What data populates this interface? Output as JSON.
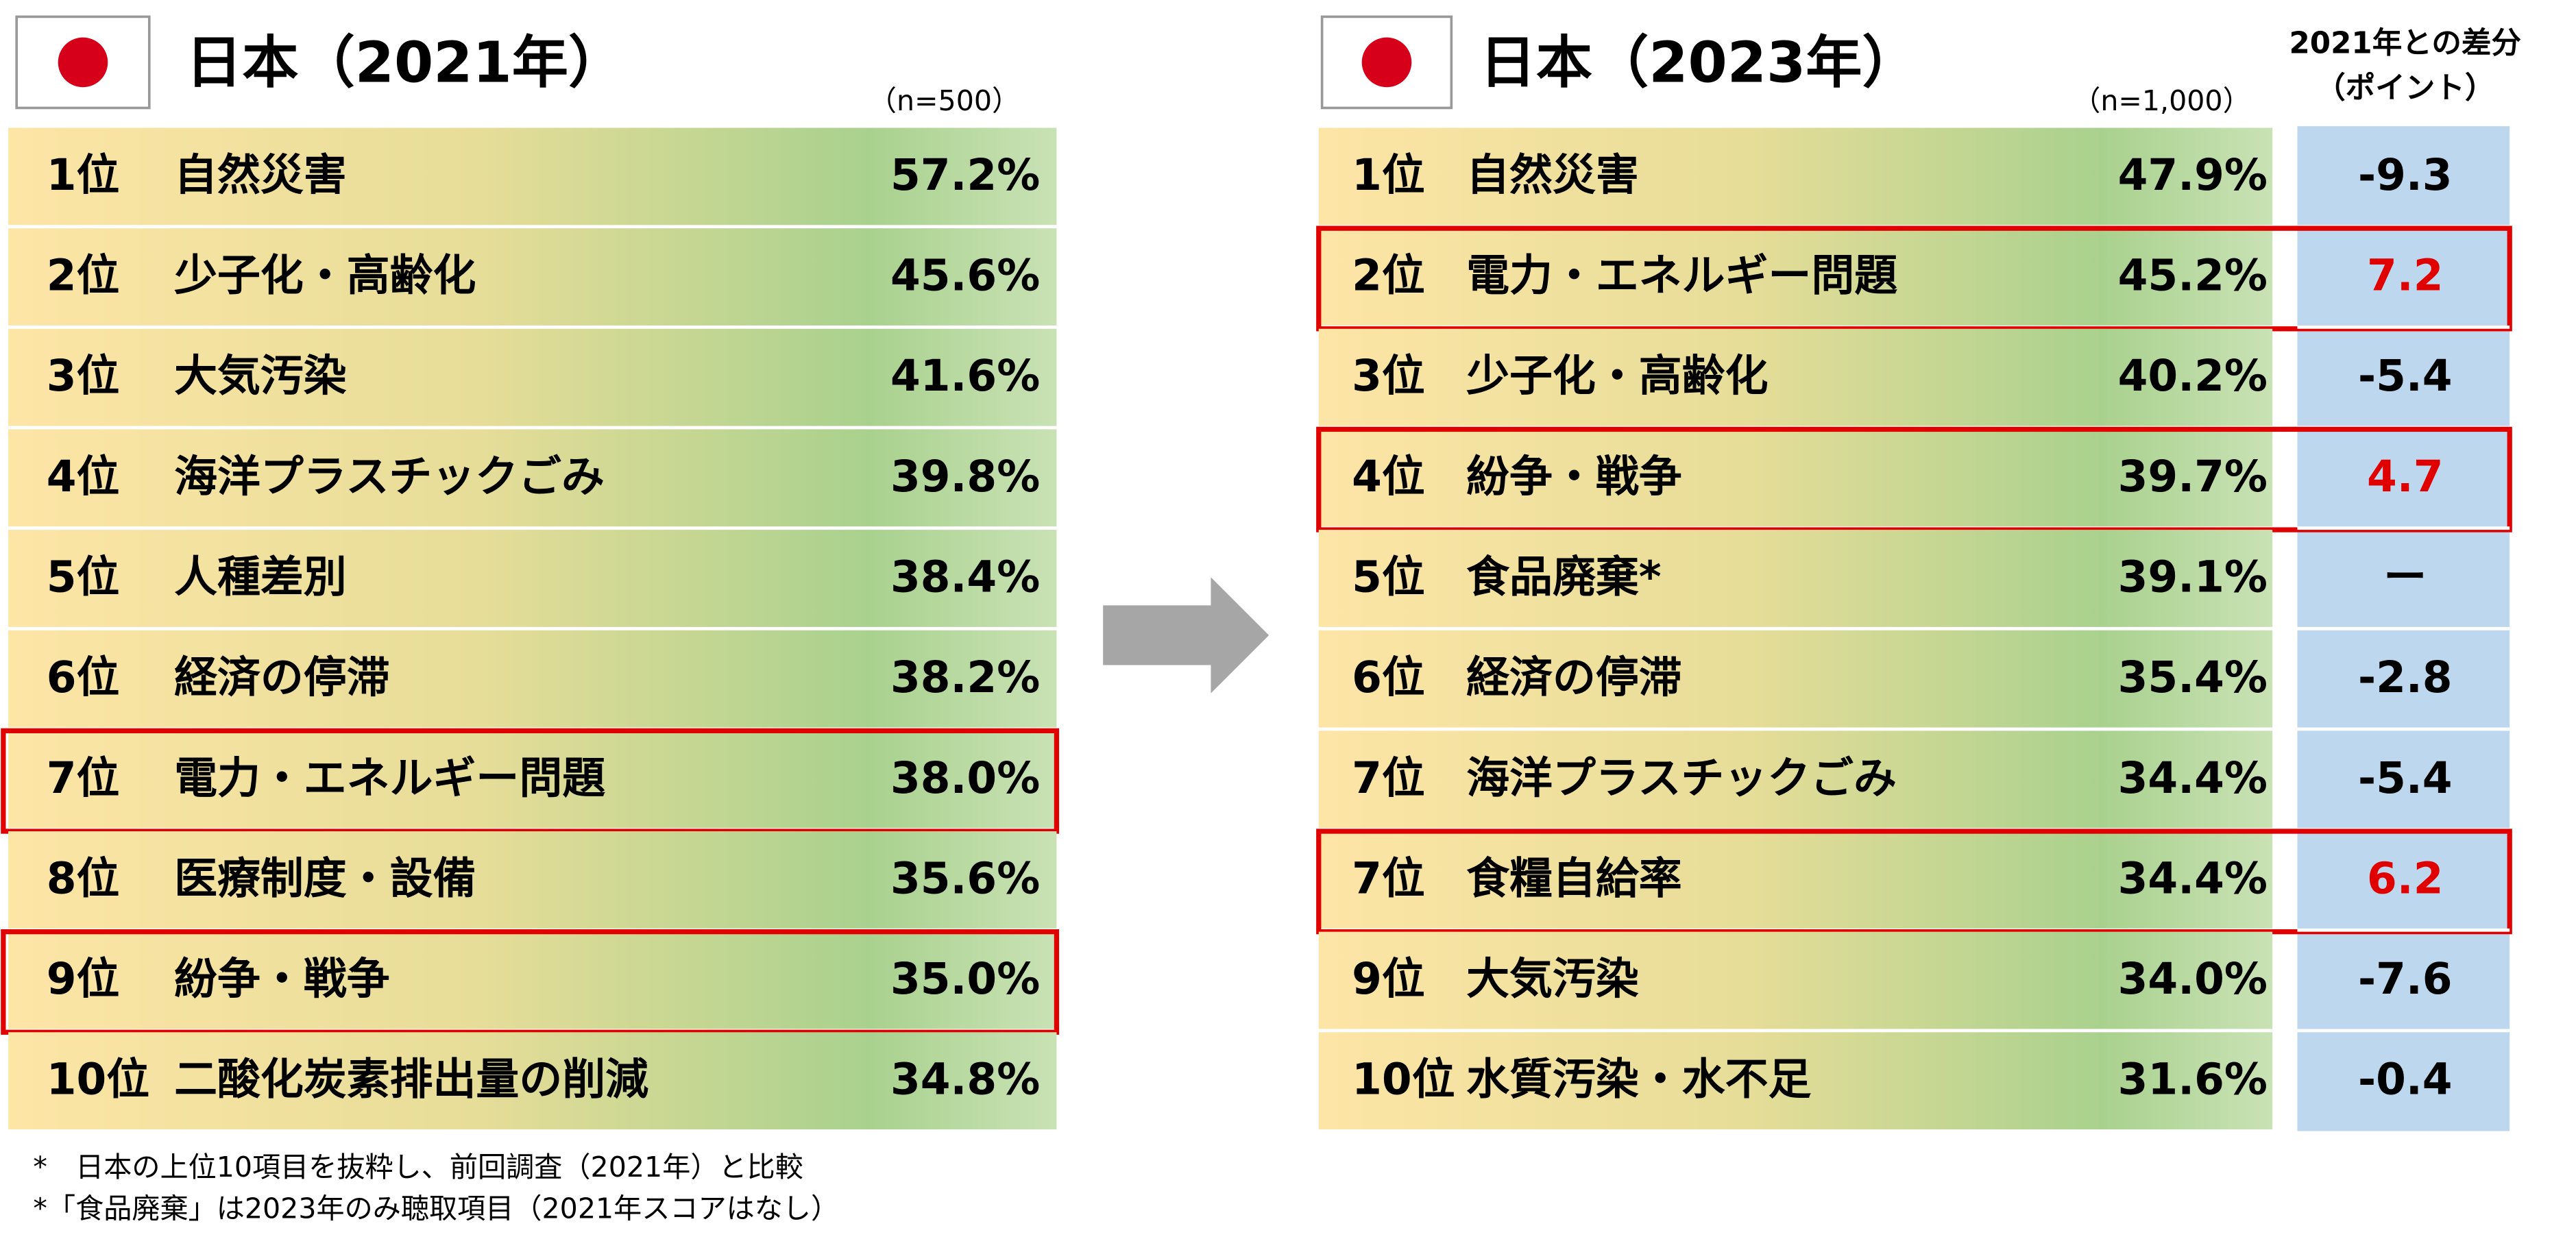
{
  "left": {
    "title": "日本（2021年）",
    "n": "（n=500）",
    "rows": [
      {
        "rank": "1位",
        "item": "自然災害",
        "value": "57.2%"
      },
      {
        "rank": "2位",
        "item": "少子化・高齢化",
        "value": "45.6%"
      },
      {
        "rank": "3位",
        "item": "大気汚染",
        "value": "41.6%"
      },
      {
        "rank": "4位",
        "item": "海洋プラスチックごみ",
        "value": "39.8%"
      },
      {
        "rank": "5位",
        "item": "人種差別",
        "value": "38.4%"
      },
      {
        "rank": "6位",
        "item": "経済の停滞",
        "value": "38.2%"
      },
      {
        "rank": "7位",
        "item": "電力・エネルギー問題",
        "value": "38.0%",
        "highlight": true
      },
      {
        "rank": "8位",
        "item": "医療制度・設備",
        "value": "35.6%"
      },
      {
        "rank": "9位",
        "item": "紛争・戦争",
        "value": "35.0%",
        "highlight": true
      },
      {
        "rank": "10位",
        "item": "二酸化炭素排出量の削減",
        "value": "34.8%"
      }
    ]
  },
  "right": {
    "title": "日本（2023年）",
    "n": "（n=1,000）",
    "diff_header": [
      "2021年との差分",
      "（ポイント）"
    ],
    "rows": [
      {
        "rank": "1位",
        "item": "自然災害",
        "value": "47.9%",
        "diff": "-9.3"
      },
      {
        "rank": "2位",
        "item": "電力・エネルギー問題",
        "value": "45.2%",
        "diff": "7.2",
        "highlight": true
      },
      {
        "rank": "3位",
        "item": "少子化・高齢化",
        "value": "40.2%",
        "diff": "-5.4"
      },
      {
        "rank": "4位",
        "item": "紛争・戦争",
        "value": "39.7%",
        "diff": "4.7",
        "highlight": true
      },
      {
        "rank": "5位",
        "item": "食品廃棄*",
        "value": "39.1%",
        "diff": "ー"
      },
      {
        "rank": "6位",
        "item": "経済の停滞",
        "value": "35.4%",
        "diff": "-2.8"
      },
      {
        "rank": "7位",
        "item": "海洋プラスチックごみ",
        "value": "34.4%",
        "diff": "-5.4"
      },
      {
        "rank": "7位",
        "item": "食糧自給率",
        "value": "34.4%",
        "diff": "6.2",
        "highlight": true
      },
      {
        "rank": "9位",
        "item": "大気汚染",
        "value": "34.0%",
        "diff": "-7.6"
      },
      {
        "rank": "10位",
        "item": "水質汚染・水不足",
        "value": "31.6%",
        "diff": "-0.4"
      }
    ]
  },
  "footnotes": [
    "*　日本の上位10項目を抜粋し、前回調査（2021年）と比較",
    "*「食品廃棄」は2023年のみ聴取項目（2021年スコアはなし）"
  ]
}
